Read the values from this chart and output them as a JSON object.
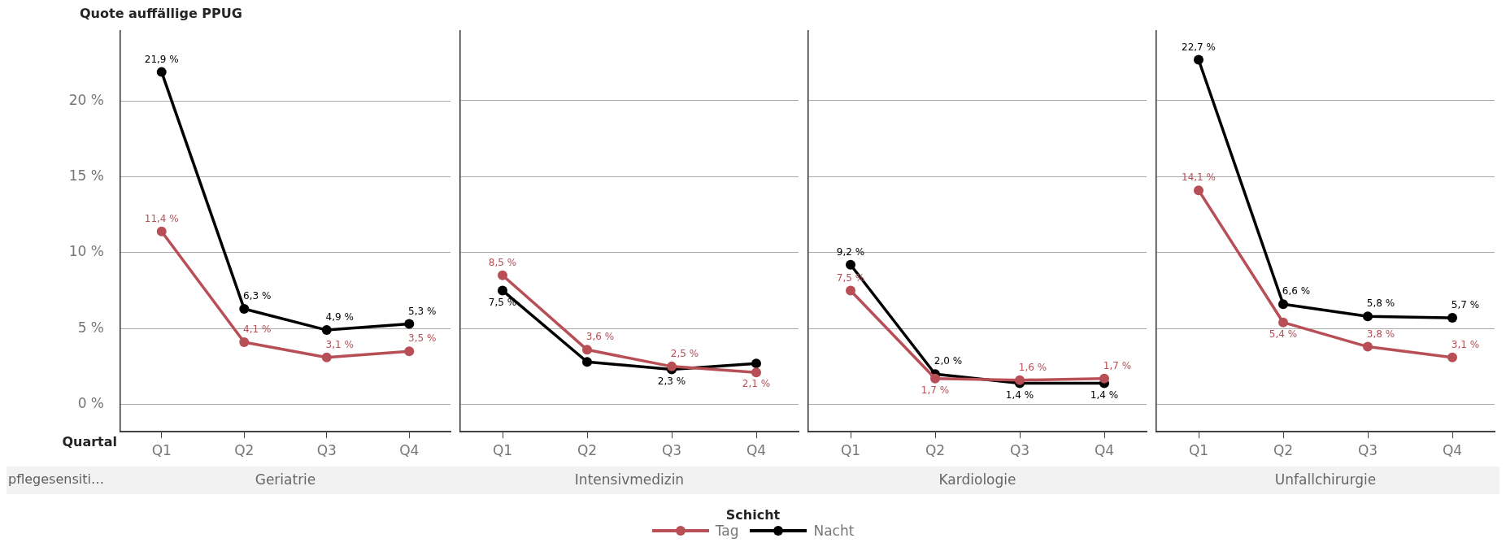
{
  "chart_data": [
    {
      "type": "line",
      "ylabel": "Quote auffällige PPUG",
      "xlabel": "Geriatrie",
      "categories": [
        "Q1",
        "Q2",
        "Q3",
        "Q4"
      ],
      "ylim": [
        -1.8,
        24.6
      ],
      "yticks": [
        {
          "value": 0,
          "label": "0 %"
        },
        {
          "value": 5,
          "label": "5 %"
        },
        {
          "value": 10,
          "label": "10 %"
        },
        {
          "value": 15,
          "label": "15 %"
        },
        {
          "value": 20,
          "label": "20 %"
        }
      ],
      "grid": "y",
      "marker": "circle",
      "legend": "bottom",
      "legend_title": "Schicht",
      "annotations": [
        "Quartal",
        "pflegesensiti…"
      ],
      "series": [
        {
          "name": "Tag",
          "color": "#b84f57",
          "values": [
            11.4,
            4.1,
            3.1,
            3.5
          ],
          "value_labels": [
            "11,4 %",
            "4,1 %",
            "3,1 %",
            "3,5 %"
          ]
        },
        {
          "name": "Nacht",
          "color": "#000000",
          "values": [
            21.9,
            6.3,
            4.9,
            5.3
          ],
          "value_labels": [
            "21,9 %",
            "6,3 %",
            "4,9 %",
            "5,3 %"
          ]
        }
      ]
    },
    {
      "type": "line",
      "xlabel": "Intensivmedizin",
      "categories": [
        "Q1",
        "Q2",
        "Q3",
        "Q4"
      ],
      "ylim": [
        -1.8,
        24.6
      ],
      "yticks": [
        0,
        5,
        10,
        15,
        20
      ],
      "grid": "y",
      "marker": "circle",
      "tick_labels": "x",
      "series": [
        {
          "color": "#b84f57",
          "values": [
            8.5,
            3.6,
            2.5,
            2.1
          ],
          "value_labels": [
            "8,5 %",
            "3,6 %",
            "2,5 %",
            "2,1 %"
          ]
        },
        {
          "color": "#000000",
          "values": [
            7.5,
            2.8,
            2.3,
            2.7
          ],
          "value_labels": [
            "7,5 %",
            null,
            "2,3 %",
            null
          ]
        }
      ]
    },
    {
      "type": "line",
      "xlabel": "Kardiologie",
      "categories": [
        "Q1",
        "Q2",
        "Q3",
        "Q4"
      ],
      "ylim": [
        -1.8,
        24.6
      ],
      "yticks": [
        0,
        5,
        10,
        15,
        20
      ],
      "grid": "y",
      "marker": "circle",
      "tick_labels": "x",
      "series": [
        {
          "color": "#b84f57",
          "values": [
            7.5,
            1.7,
            1.6,
            1.7
          ],
          "value_labels": [
            "7,5 %",
            "1,7 %",
            "1,6 %",
            "1,7 %"
          ]
        },
        {
          "color": "#000000",
          "values": [
            9.2,
            2.0,
            1.4,
            1.4
          ],
          "value_labels": [
            "9,2 %",
            "2,0 %",
            "1,4 %",
            "1,4 %"
          ]
        }
      ]
    },
    {
      "type": "line",
      "xlabel": "Unfallchirurgie",
      "categories": [
        "Q1",
        "Q2",
        "Q3",
        "Q4"
      ],
      "ylim": [
        -1.8,
        24.6
      ],
      "yticks": [
        0,
        5,
        10,
        15,
        20
      ],
      "grid": "y",
      "marker": "circle",
      "tick_labels": "x",
      "series": [
        {
          "color": "#b84f57",
          "values": [
            14.1,
            5.4,
            3.8,
            3.1
          ],
          "value_labels": [
            "14,1 %",
            "5,4 %",
            "3,8 %",
            "3,1 %"
          ]
        },
        {
          "color": "#000000",
          "values": [
            22.7,
            6.6,
            5.8,
            5.7
          ],
          "value_labels": [
            "22,7 %",
            "6,6 %",
            "5,8 %",
            "5,7 %"
          ]
        }
      ]
    }
  ]
}
